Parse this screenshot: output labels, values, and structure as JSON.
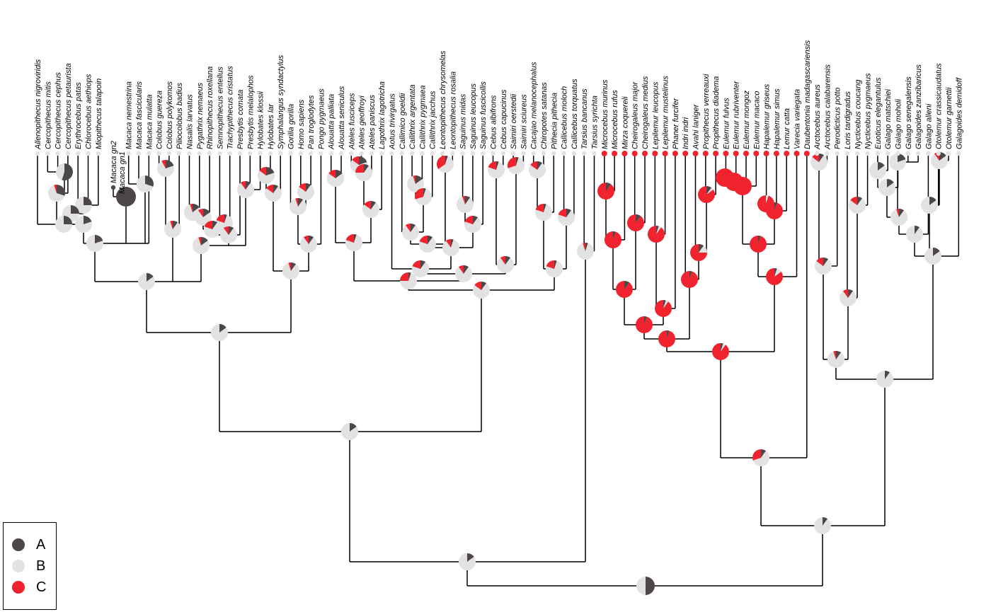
{
  "tips": [
    "Allenopithecus nigroviridis",
    "Cercopithecus mitis",
    "Cercopithecus cephus",
    "Cercopithecus petaurista",
    "Erythrocebus patas",
    "Chlorocebus aethiops",
    "Miopithecus talapoin",
    "Macaca gn2",
    "Macaca gn1",
    "Macaca nemestrina",
    "Macaca fascicularis",
    "Macaca mulatta",
    "Colobus guereza",
    "Colobus polykomos",
    "Piliocolobus badius",
    "Nasalis larvatus",
    "Pygathrix nemaeus",
    "Rhinopithecus roxellana",
    "Semnopithecus entellus",
    "Trachypithecus cristatus",
    "Presbytis comata",
    "Presbytis melalophos",
    "Hylobates klossii",
    "Hylobates lar",
    "Symphalangus syndactylus",
    "Gorilla gorilla",
    "Homo sapiens",
    "Pan troglodytes",
    "Pongo pygmaeus",
    "Alouatta palliata",
    "Alouatta seniculus",
    "Ateles fusciceps",
    "Ateles geoffroyi",
    "Ateles paniscus",
    "Lagothrix lagotricha",
    "Aotus trivirgatus",
    "Callimico goeldii",
    "Callithrix argentata",
    "Callithrix pygmaea",
    "Callithrix jacchus",
    "Leontopithecus chrysomelas",
    "Leontopithecus rosalia",
    "Saguinus midas",
    "Saguinus leucopus",
    "Saguinus fuscicollis",
    "Cebus albifrons",
    "Cebus capucinus",
    "Saimiri oerstedii",
    "Saimiri sciureus",
    "Cacajao melanocephalus",
    "Chiropotes satanas",
    "Pithecia pithecia",
    "Callicebus moloch",
    "Callicebus torquatus",
    "Tarsius bancanus",
    "Tarsius syrichta",
    "Microcebus murinus",
    "Microcebus rufus",
    "Mirza coquereli",
    "Cheirogaleus major",
    "Cheirogaleus medius",
    "Lepilemur leucopus",
    "Lepilemur mustelinus",
    "Phaner furcifer",
    "Indri indri",
    "Avahi laniger",
    "Propithecus verreauxi",
    "Propithecus diadema",
    "Eulemur fulvus",
    "Eulemur rubriventer",
    "Eulemur mongoz",
    "Eulemur macaco",
    "Hapalemur griseus",
    "Hapalemur simus",
    "Lemur catta",
    "Varecia variegata",
    "Daubentonia madagascariensis",
    "Arctocebus aureus",
    "Arctocebus calabarensis",
    "Perodicticus potto",
    "Loris tardigradus",
    "Nycticebus coucang",
    "Nycticebus pygmaeus",
    "Euoticus elegantulus",
    "Galago matschiei",
    "Galago moholi",
    "Galago senegalensis",
    "Galagoides zanzibaricus",
    "Galago alleni",
    "Otolemur crassicaudatus",
    "Otolemur garnettii",
    "Galagoides demidoff"
  ],
  "tip_states": [
    "B",
    "B",
    "B",
    "B",
    "B",
    "B",
    "B",
    "A",
    "A",
    "B",
    "B",
    "B",
    "B",
    "B",
    "B",
    "B",
    "B",
    "B",
    "B",
    "B",
    "B",
    "B",
    "B",
    "B",
    "B",
    "B",
    "B",
    "B",
    "B",
    "B",
    "B",
    "B",
    "B",
    "B",
    "B",
    "B",
    "B",
    "B",
    "B",
    "B",
    "B",
    "B",
    "B",
    "B",
    "B",
    "B",
    "B",
    "B",
    "B",
    "B",
    "B",
    "B",
    "B",
    "B",
    "B",
    "B",
    "C",
    "C",
    "C",
    "C",
    "C",
    "C",
    "C",
    "C",
    "C",
    "C",
    "C",
    "C",
    "C",
    "C",
    "C",
    "C",
    "C",
    "C",
    "C",
    "C",
    "C",
    "B",
    "B",
    "B",
    "B",
    "B",
    "B",
    "B",
    "B",
    "B",
    "B",
    "B",
    "B",
    "B",
    "B",
    "B"
  ],
  "legend": [
    {
      "label": "A",
      "color": "#4e4749"
    },
    {
      "label": "B",
      "color": "#e2e2e2"
    },
    {
      "label": "C",
      "color": "#f0232f"
    }
  ]
}
